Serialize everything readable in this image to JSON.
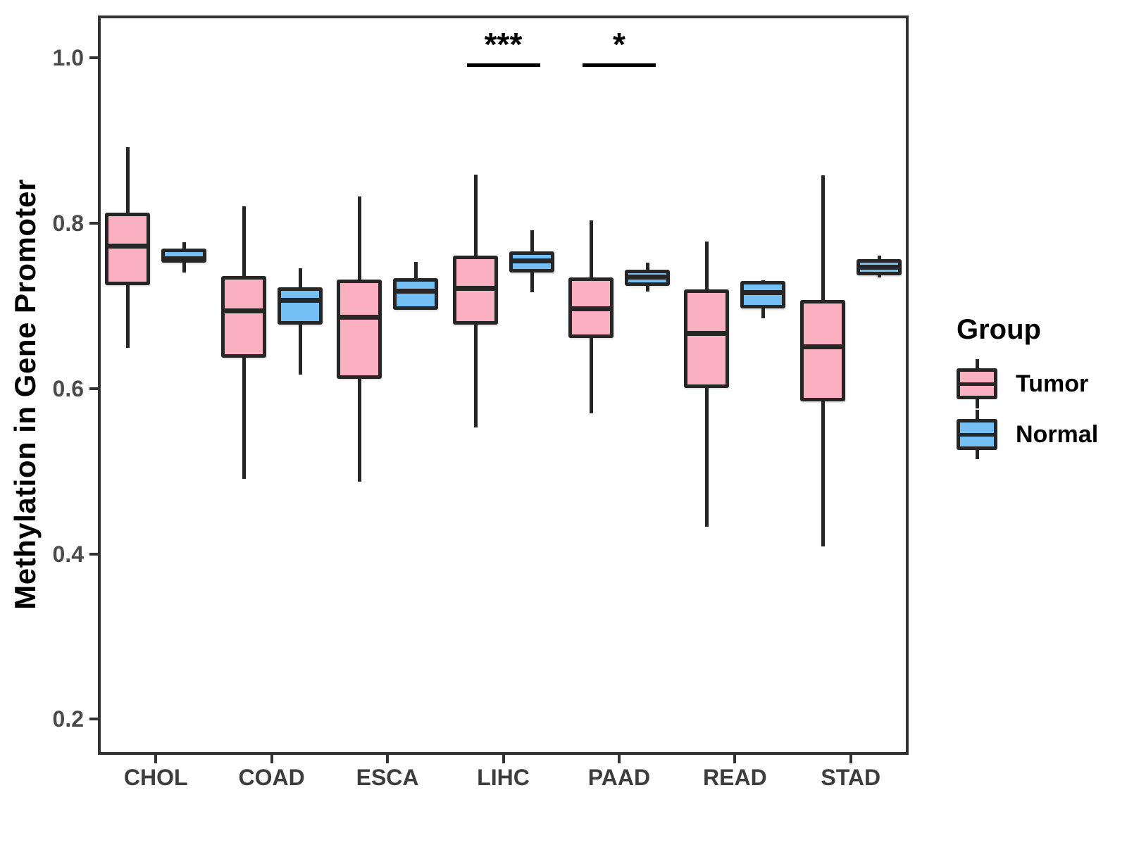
{
  "figure": {
    "y_axis_title": "Methylation in Gene Promoter"
  },
  "legend": {
    "title": "Group",
    "items": [
      {
        "label": "Tumor",
        "color": "#FAB0C1"
      },
      {
        "label": "Normal",
        "color": "#74C0F5"
      }
    ]
  },
  "chart_data": {
    "type": "boxplot",
    "title": "",
    "xlabel": "",
    "ylabel": "Methylation in Gene Promoter",
    "categories": [
      "CHOL",
      "COAD",
      "ESCA",
      "LIHC",
      "PAAD",
      "READ",
      "STAD"
    ],
    "y_ticks": [
      1.0,
      0.8,
      0.6,
      0.4,
      0.2
    ],
    "y_tick_labels": [
      "1.0",
      "0.8",
      "0.6",
      "0.4",
      "0.2"
    ],
    "ylim": [
      0.157,
      1.051
    ],
    "grid": false,
    "legend_position": "right",
    "stroke_color": "#262626",
    "series": [
      {
        "name": "Tumor",
        "color": "#FAB0C1",
        "boxes": [
          {
            "category": "CHOL",
            "low": 0.649,
            "q1": 0.725,
            "median": 0.772,
            "q3": 0.813,
            "high": 0.892
          },
          {
            "category": "COAD",
            "low": 0.491,
            "q1": 0.637,
            "median": 0.694,
            "q3": 0.736,
            "high": 0.82
          },
          {
            "category": "ESCA",
            "low": 0.487,
            "q1": 0.612,
            "median": 0.686,
            "q3": 0.732,
            "high": 0.832
          },
          {
            "category": "LIHC",
            "low": 0.553,
            "q1": 0.677,
            "median": 0.721,
            "q3": 0.761,
            "high": 0.859
          },
          {
            "category": "PAAD",
            "low": 0.57,
            "q1": 0.661,
            "median": 0.696,
            "q3": 0.734,
            "high": 0.803
          },
          {
            "category": "READ",
            "low": 0.433,
            "q1": 0.601,
            "median": 0.667,
            "q3": 0.72,
            "high": 0.778
          },
          {
            "category": "STAD",
            "low": 0.409,
            "q1": 0.584,
            "median": 0.65,
            "q3": 0.707,
            "high": 0.858
          }
        ]
      },
      {
        "name": "Normal",
        "color": "#74C0F5",
        "boxes": [
          {
            "category": "CHOL",
            "low": 0.74,
            "q1": 0.752,
            "median": 0.757,
            "q3": 0.769,
            "high": 0.777
          },
          {
            "category": "COAD",
            "low": 0.617,
            "q1": 0.677,
            "median": 0.707,
            "q3": 0.722,
            "high": 0.745
          },
          {
            "category": "ESCA",
            "low": 0.695,
            "q1": 0.695,
            "median": 0.718,
            "q3": 0.733,
            "high": 0.753
          },
          {
            "category": "LIHC",
            "low": 0.716,
            "q1": 0.74,
            "median": 0.754,
            "q3": 0.766,
            "high": 0.791
          },
          {
            "category": "PAAD",
            "low": 0.717,
            "q1": 0.724,
            "median": 0.735,
            "q3": 0.744,
            "high": 0.752
          },
          {
            "category": "READ",
            "low": 0.685,
            "q1": 0.697,
            "median": 0.716,
            "q3": 0.73,
            "high": 0.731
          },
          {
            "category": "STAD",
            "low": 0.734,
            "q1": 0.737,
            "median": 0.747,
            "q3": 0.756,
            "high": 0.761
          }
        ]
      }
    ],
    "annotations": [
      {
        "category": "LIHC",
        "label": "***",
        "bar_y": 0.991
      },
      {
        "category": "PAAD",
        "label": "*",
        "bar_y": 0.991
      }
    ]
  }
}
